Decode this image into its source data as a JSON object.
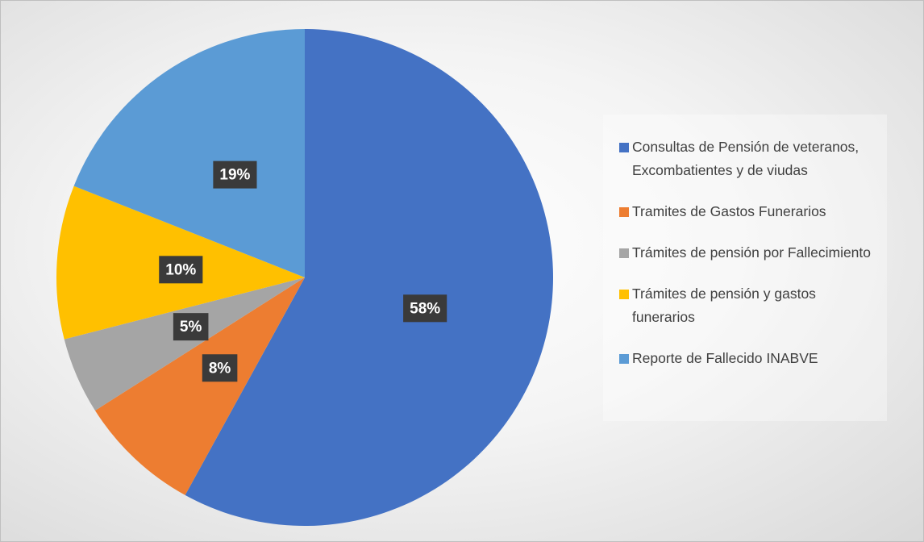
{
  "chart_data": {
    "type": "pie",
    "categories": [
      "Consultas de Pensión de veteranos, Excombatientes y de viudas",
      "Tramites de Gastos Funerarios",
      "Trámites de pensión por Fallecimiento",
      "Trámites de pensión y gastos funerarios",
      "Reporte de Fallecido INABVE"
    ],
    "values": [
      58,
      8,
      5,
      10,
      19
    ],
    "value_labels": [
      "58%",
      "8%",
      "5%",
      "10%",
      "19%"
    ],
    "colors": [
      "#4472c4",
      "#ed7d31",
      "#a5a5a5",
      "#ffc000",
      "#5b9bd5"
    ],
    "legend": "right"
  }
}
